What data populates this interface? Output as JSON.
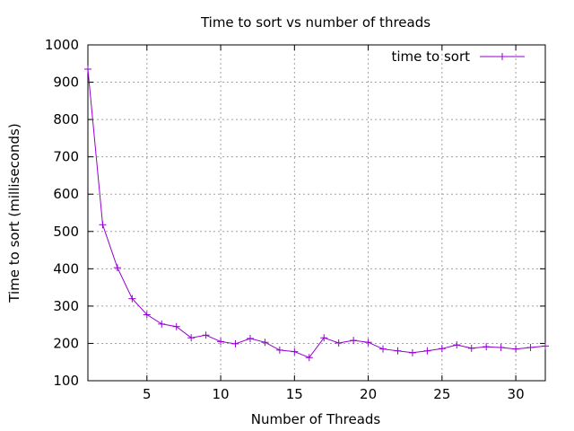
{
  "chart_data": {
    "type": "line",
    "title": "Time to sort vs number of threads",
    "xlabel": "Number of Threads",
    "ylabel": "Time to sort (milliseconds)",
    "xlim": [
      1,
      32
    ],
    "ylim": [
      100,
      1000
    ],
    "xticks": [
      5,
      10,
      15,
      20,
      25,
      30
    ],
    "yticks": [
      100,
      200,
      300,
      400,
      500,
      600,
      700,
      800,
      900,
      1000
    ],
    "grid": true,
    "legend_position": "top-right",
    "series": [
      {
        "name": "time to sort",
        "color": "#9400d3",
        "marker": "plus",
        "x": [
          1,
          2,
          3,
          4,
          5,
          6,
          7,
          8,
          9,
          10,
          11,
          12,
          13,
          14,
          15,
          16,
          17,
          18,
          19,
          20,
          21,
          22,
          23,
          24,
          25,
          26,
          27,
          28,
          29,
          30,
          31,
          32
        ],
        "y": [
          935,
          518,
          403,
          320,
          277,
          252,
          245,
          215,
          222,
          205,
          199,
          213,
          203,
          182,
          178,
          162,
          215,
          201,
          208,
          203,
          185,
          180,
          175,
          180,
          186,
          196,
          187,
          191,
          189,
          185,
          189,
          193
        ]
      }
    ]
  }
}
